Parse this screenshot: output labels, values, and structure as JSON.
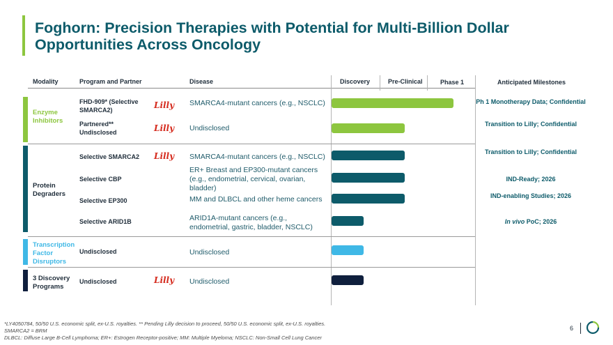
{
  "title": "Foghorn: Precision Therapies with Potential for Multi-Billion Dollar Opportunities Across Oncology",
  "headers": {
    "modality": "Modality",
    "program": "Program and Partner",
    "disease": "Disease",
    "discovery": "Discovery",
    "preclinical": "Pre-Clinical",
    "phase1": "Phase 1",
    "milestones": "Anticipated Milestones"
  },
  "partner_logo_text": "Lilly",
  "modalities": {
    "enzyme": "Enzyme Inhibitors",
    "degraders": "Protein Degraders",
    "tfd": "Transcription Factor Disruptors",
    "discovery": "3 Discovery Programs"
  },
  "rows": [
    {
      "program": "FHD-909* (Selective SMARCA2)",
      "disease": "SMARCA4-mutant cancers (e.g., NSCLC)",
      "milestone": "Ph 1 Monotherapy Data; Confidential",
      "stage": "Phase 1"
    },
    {
      "program": "Partnered** Undisclosed",
      "disease": "Undisclosed",
      "milestone": "Transition to Lilly; Confidential",
      "stage": "Pre-Clinical"
    },
    {
      "program": "Selective SMARCA2",
      "disease": "SMARCA4-mutant cancers (e.g., NSCLC)",
      "milestone": "Transition to Lilly; Confidential",
      "stage": "Pre-Clinical"
    },
    {
      "program": "Selective CBP",
      "disease": "ER+ Breast and EP300-mutant cancers (e.g., endometrial, cervical, ovarian, bladder)",
      "milestone": "IND-Ready; 2026",
      "stage": "Pre-Clinical"
    },
    {
      "program": "Selective EP300",
      "disease": "MM and DLBCL and other heme cancers",
      "milestone": "IND-enabling Studies; 2026",
      "stage": "Pre-Clinical"
    },
    {
      "program": "Selective ARID1B",
      "disease": "ARID1A-mutant cancers (e.g., endometrial, gastric, bladder, NSCLC)",
      "milestone_italic": "In vivo",
      "milestone": " PoC; 2026",
      "stage": "Discovery"
    },
    {
      "program": "Undisclosed",
      "disease": "Undisclosed",
      "stage": "Discovery"
    },
    {
      "program": "Undisclosed",
      "disease": "Undisclosed",
      "stage": "Discovery"
    }
  ],
  "colors": {
    "enzyme": "#8dc63f",
    "degraders": "#0d5b6a",
    "tfd": "#3fb8e6",
    "discovery": "#0f1f3d"
  },
  "footnotes": {
    "line1": "*LY4050784, 50/50 U.S. economic split, ex-U.S. royalties. ** Pending Lilly decision to proceed, 50/50 U.S. economic split, ex-U.S. royalties.",
    "line2": "SMARCA2 = BRM",
    "line3": "DLBCL: Diffuse Large B-Cell Lymphoma; ER+: Estrogen Receptor-positive; MM: Multiple Myeloma; NSCLC: Non-Small Cell Lung Cancer"
  },
  "page_number": "6"
}
